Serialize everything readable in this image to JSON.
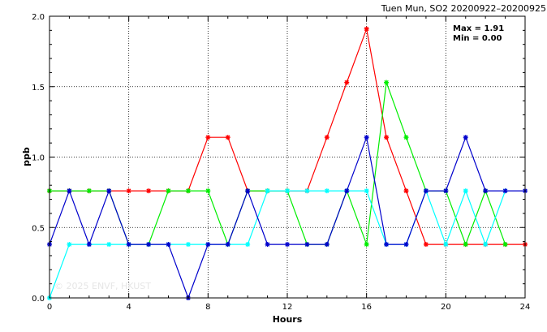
{
  "chart_data": {
    "type": "line",
    "title": "Tuen Mun, SO2 20200922–20200925",
    "xlabel": "Hours",
    "ylabel": "ppb",
    "xlim": [
      0,
      24
    ],
    "ylim": [
      0,
      2.0
    ],
    "xticks": [
      "0",
      "4",
      "8",
      "12",
      "16",
      "20",
      "24"
    ],
    "yticks": [
      "0.0",
      "0.5",
      "1.0",
      "1.5",
      "2.0"
    ],
    "grid": true,
    "legend": "none",
    "annotation": {
      "max": "Max = 1.91",
      "min": "Min = 0.00"
    },
    "watermark": "© 2025  ENVF, HKUST",
    "x": [
      0,
      1,
      2,
      3,
      4,
      5,
      6,
      7,
      8,
      9,
      10,
      11,
      12,
      13,
      14,
      15,
      16,
      17,
      18,
      19,
      20,
      21,
      22,
      23,
      24
    ],
    "series": [
      {
        "color": "#ff0000",
        "values": [
          0.76,
          0.76,
          0.76,
          0.76,
          0.76,
          0.76,
          0.76,
          0.76,
          1.14,
          1.14,
          0.76,
          0.76,
          0.76,
          0.76,
          1.14,
          1.53,
          1.91,
          1.14,
          0.76,
          0.38,
          0.38,
          0.38,
          0.38,
          0.38,
          0.38
        ]
      },
      {
        "color": "#00ee00",
        "values": [
          0.76,
          0.76,
          0.76,
          0.76,
          0.38,
          0.38,
          0.76,
          0.76,
          0.76,
          0.38,
          0.76,
          0.76,
          0.76,
          0.38,
          0.38,
          0.76,
          0.38,
          1.53,
          1.14,
          0.76,
          0.76,
          0.38,
          0.76,
          0.38,
          null
        ]
      },
      {
        "color": "#00ffff",
        "values": [
          0.0,
          0.38,
          0.38,
          0.38,
          0.38,
          0.38,
          0.38,
          0.38,
          0.38,
          0.38,
          0.38,
          0.76,
          0.76,
          0.76,
          0.76,
          0.76,
          0.76,
          0.38,
          0.38,
          0.76,
          0.38,
          0.76,
          0.38,
          0.76,
          null
        ]
      },
      {
        "color": "#0000cc",
        "values": [
          0.38,
          0.76,
          0.38,
          0.76,
          0.38,
          0.38,
          0.38,
          0.0,
          0.38,
          0.38,
          0.76,
          0.38,
          0.38,
          0.38,
          0.38,
          0.76,
          1.14,
          0.38,
          0.38,
          0.76,
          0.76,
          1.14,
          0.76,
          0.76,
          0.76
        ]
      }
    ]
  }
}
